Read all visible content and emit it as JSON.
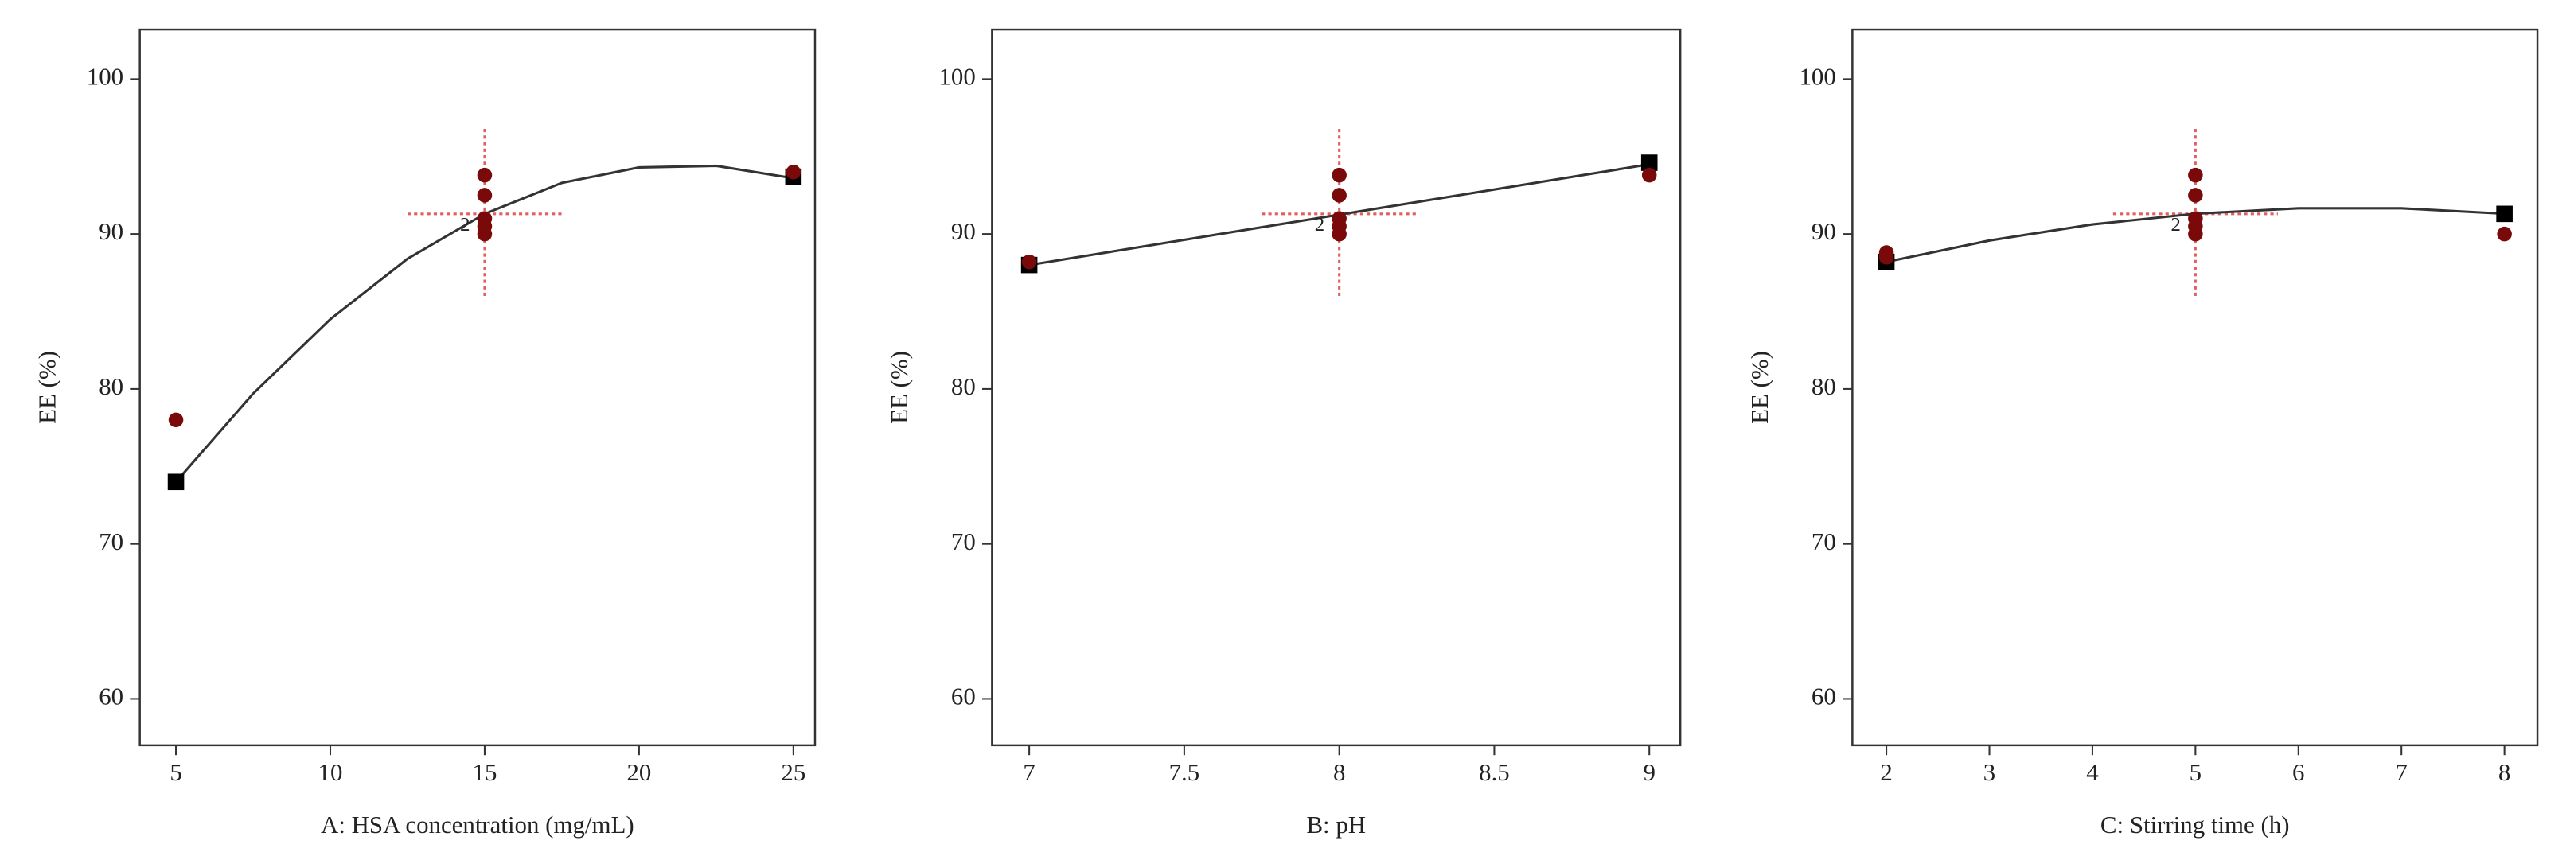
{
  "chart_data": [
    {
      "type": "scatter",
      "x_label": "A: HSA concentration (mg/mL)",
      "y_label": "EE (%)",
      "xlim": [
        3.83,
        25.7
      ],
      "ylim": [
        57,
        103.2
      ],
      "xticks": [
        5,
        10,
        15,
        20,
        25
      ],
      "yticks": [
        60,
        70,
        80,
        90,
        100
      ],
      "series": [
        {
          "marker": "line",
          "color": "#333333",
          "x": [
            5,
            7.5,
            10,
            12.5,
            15,
            17.5,
            20,
            22.5,
            25
          ],
          "values": [
            74.0,
            79.7,
            84.5,
            88.4,
            91.3,
            93.3,
            94.3,
            94.4,
            93.6
          ]
        },
        {
          "marker": "square",
          "color": "#000000",
          "x": [
            5,
            25
          ],
          "values": [
            74.0,
            93.7
          ]
        },
        {
          "marker": "circle",
          "color": "#7a0a0a",
          "x": [
            5,
            15,
            15,
            15,
            15,
            15,
            25
          ],
          "values": [
            78,
            93.8,
            92.5,
            91,
            90.5,
            90,
            94
          ]
        }
      ],
      "crosshair": {
        "x": 15,
        "y": 91.3,
        "xrange": [
          12.5,
          17.5
        ],
        "yrange": [
          86,
          97
        ],
        "color": "#e06060"
      },
      "annotations": [
        {
          "text": "2",
          "x": 15,
          "y": 90.5
        }
      ]
    },
    {
      "type": "scatter",
      "x_label": "B: pH",
      "y_label": "EE (%)",
      "xlim": [
        6.88,
        9.1
      ],
      "ylim": [
        57,
        103.2
      ],
      "xticks": [
        7,
        7.5,
        8,
        8.5,
        9
      ],
      "yticks": [
        60,
        70,
        80,
        90,
        100
      ],
      "series": [
        {
          "marker": "line",
          "color": "#333333",
          "x": [
            7,
            9
          ],
          "values": [
            88.0,
            94.5
          ]
        },
        {
          "marker": "square",
          "color": "#000000",
          "x": [
            7,
            9
          ],
          "values": [
            88.0,
            94.6
          ]
        },
        {
          "marker": "circle",
          "color": "#7a0a0a",
          "x": [
            7,
            8,
            8,
            8,
            8,
            8,
            9
          ],
          "values": [
            88.2,
            93.8,
            92.5,
            91,
            90.5,
            90,
            93.8
          ]
        }
      ],
      "crosshair": {
        "x": 8,
        "y": 91.3,
        "xrange": [
          7.75,
          8.25
        ],
        "yrange": [
          86,
          97
        ],
        "color": "#e06060"
      },
      "annotations": [
        {
          "text": "2",
          "x": 8,
          "y": 90.5
        }
      ]
    },
    {
      "type": "scatter",
      "x_label": "C: Stirring time (h)",
      "y_label": "EE (%)",
      "xlim": [
        1.67,
        8.32
      ],
      "ylim": [
        57,
        103.2
      ],
      "xticks": [
        2,
        3,
        4,
        5,
        6,
        7,
        8
      ],
      "yticks": [
        60,
        70,
        80,
        90,
        100
      ],
      "series": [
        {
          "marker": "line",
          "color": "#333333",
          "x": [
            2,
            3,
            4,
            5,
            6,
            7,
            8
          ],
          "values": [
            88.2,
            89.58,
            90.62,
            91.31,
            91.66,
            91.66,
            91.31
          ]
        },
        {
          "marker": "square",
          "color": "#000000",
          "x": [
            2,
            8
          ],
          "values": [
            88.2,
            91.3
          ]
        },
        {
          "marker": "circle",
          "color": "#7a0a0a",
          "x": [
            2,
            2,
            5,
            5,
            5,
            5,
            5,
            8
          ],
          "values": [
            88.8,
            88.5,
            93.8,
            92.5,
            91,
            90.5,
            90,
            90
          ]
        }
      ],
      "crosshair": {
        "x": 5,
        "y": 91.3,
        "xrange": [
          4.2,
          5.8
        ],
        "yrange": [
          86,
          97
        ],
        "color": "#e06060"
      },
      "annotations": [
        {
          "text": "2",
          "x": 5,
          "y": 90.5
        }
      ]
    }
  ]
}
